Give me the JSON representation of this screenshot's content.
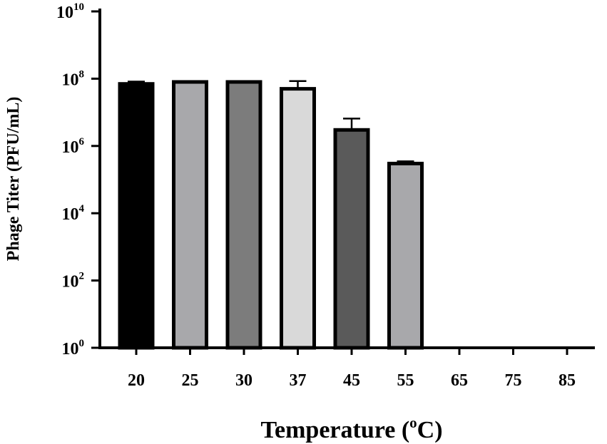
{
  "chart_data": {
    "type": "bar",
    "title": "",
    "xlabel": {
      "prefix": "Temperature (",
      "superscript": "o",
      "suffix": "C)"
    },
    "ylabel": "Phage Titer (PFU/mL)",
    "yscale": "log10",
    "ylim": [
      1,
      10000000000
    ],
    "yticks": [
      {
        "base": "10",
        "exp": "0",
        "value": 1
      },
      {
        "base": "10",
        "exp": "2",
        "value": 100
      },
      {
        "base": "10",
        "exp": "4",
        "value": 10000
      },
      {
        "base": "10",
        "exp": "6",
        "value": 1000000
      },
      {
        "base": "10",
        "exp": "8",
        "value": 100000000
      },
      {
        "base": "10",
        "exp": "10",
        "value": 10000000000
      }
    ],
    "categories": [
      "20",
      "25",
      "30",
      "37",
      "45",
      "55",
      "65",
      "75",
      "85"
    ],
    "values": [
      70000000,
      80000000,
      80000000,
      50000000,
      3000000,
      300000,
      0,
      0,
      0
    ],
    "error_upper": [
      82000000,
      85000000,
      85000000,
      85000000,
      6500000,
      350000,
      null,
      null,
      null
    ],
    "bar_colors": [
      "#000000",
      "#a8a8ab",
      "#7c7c7c",
      "#d9d9d9",
      "#5a5a5a",
      "#a8a8ab",
      null,
      null,
      null
    ],
    "grid": false,
    "legend": "none"
  }
}
